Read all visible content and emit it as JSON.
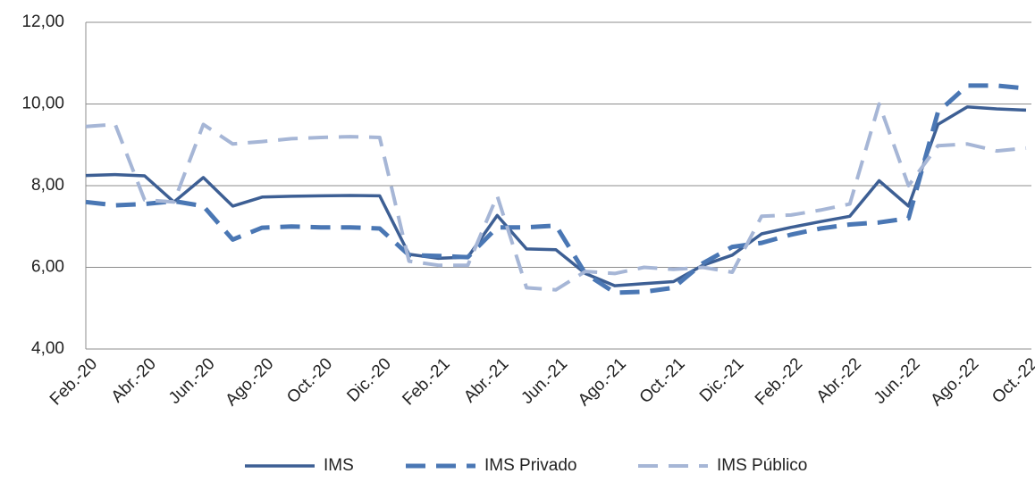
{
  "chart_data": {
    "type": "line",
    "categories": [
      "Feb.-20",
      null,
      "Abr.-20",
      null,
      "Jun.-20",
      null,
      "Ago.-20",
      null,
      "Oct.-20",
      null,
      "Dic.-20",
      null,
      "Feb.-21",
      null,
      "Abr.-21",
      null,
      "Jun.-21",
      null,
      "Ago.-21",
      null,
      "Oct.-21",
      null,
      "Dic.-21",
      null,
      "Feb.-22",
      null,
      "Abr.-22",
      null,
      "Jun.-22",
      null,
      "Ago.-22",
      null,
      "Oct.-22"
    ],
    "series": [
      {
        "name": "IMS",
        "color": "#3d5f94",
        "line_style": "solid",
        "values": [
          8.25,
          8.27,
          8.24,
          7.6,
          8.2,
          7.5,
          7.72,
          7.74,
          7.75,
          7.76,
          7.75,
          6.32,
          6.22,
          6.25,
          7.27,
          6.45,
          6.43,
          5.85,
          5.55,
          5.6,
          5.65,
          6.05,
          6.3,
          6.82,
          6.98,
          7.12,
          7.25,
          8.12,
          7.5,
          9.5,
          9.93,
          9.88,
          9.85
        ]
      },
      {
        "name": "IMS Privado",
        "color": "#4a77b4",
        "line_style": "dashed",
        "values": [
          7.6,
          7.52,
          7.55,
          7.62,
          7.5,
          6.68,
          6.97,
          7.0,
          6.98,
          6.98,
          6.95,
          6.3,
          6.28,
          6.25,
          6.98,
          6.98,
          7.02,
          5.85,
          5.38,
          5.4,
          5.5,
          6.1,
          6.5,
          6.6,
          6.8,
          6.95,
          7.05,
          7.1,
          7.2,
          9.8,
          10.45,
          10.45,
          10.38
        ]
      },
      {
        "name": "IMS Público",
        "color": "#a6b6d6",
        "line_style": "dashed",
        "values": [
          9.45,
          9.5,
          7.65,
          7.6,
          9.5,
          9.02,
          9.08,
          9.15,
          9.18,
          9.2,
          9.18,
          6.15,
          6.05,
          6.05,
          7.75,
          5.5,
          5.45,
          5.9,
          5.85,
          6.0,
          5.95,
          6.0,
          5.88,
          7.25,
          7.28,
          7.4,
          7.55,
          10.0,
          8.0,
          8.98,
          9.02,
          8.85,
          8.92
        ]
      }
    ],
    "ylim": [
      4,
      12
    ],
    "yticks": [
      {
        "value": 4,
        "label": "4,00"
      },
      {
        "value": 6,
        "label": "6,00"
      },
      {
        "value": 8,
        "label": "8,00"
      },
      {
        "value": 10,
        "label": "10,00"
      },
      {
        "value": 12,
        "label": "12,00"
      }
    ],
    "grid": true,
    "legend": "bottom"
  }
}
